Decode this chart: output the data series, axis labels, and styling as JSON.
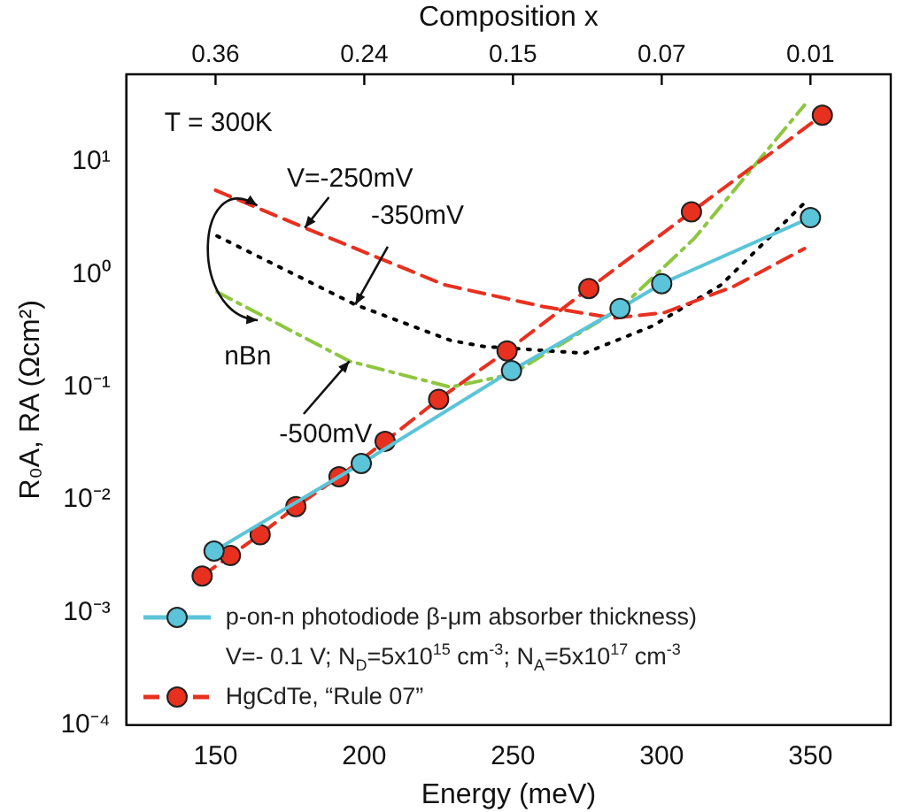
{
  "chart_data": {
    "type": "line",
    "xlabel": "Energy (meV)",
    "ylabel": "R₀A, RA (Ωcm²)",
    "xlim": [
      120,
      377
    ],
    "xticks": [
      150,
      200,
      250,
      300,
      350
    ],
    "log": "y",
    "ylim": [
      0.0001,
      60
    ],
    "yticks": [
      {
        "value": 0.0001,
        "label": "10⁻⁴"
      },
      {
        "value": 0.001,
        "label": "10⁻³"
      },
      {
        "value": 0.01,
        "label": "10⁻²"
      },
      {
        "value": 0.1,
        "label": "10⁻¹"
      },
      {
        "value": 1,
        "label": "10⁰"
      },
      {
        "value": 10,
        "label": "10¹"
      }
    ],
    "grid": false,
    "legend": "bottom left",
    "series": [
      {
        "name": "p-on-n photodiode β-μm  absorber thickness)",
        "color": "#5bc4d8",
        "marker": "circle",
        "line_style": "solid",
        "x": [
          149.5,
          199,
          249.5,
          286,
          300,
          350
        ],
        "values": [
          0.0035,
          0.021,
          0.14,
          0.5,
          0.83,
          3.2
        ]
      },
      {
        "name": "HgCdTe, “Rule 07”",
        "color": "#e8301f",
        "marker": "circle",
        "line_style": "dashed",
        "x": [
          145.5,
          155,
          165,
          177,
          191.5,
          207,
          225,
          248,
          275.5,
          310,
          354
        ],
        "values": [
          0.0021,
          0.0032,
          0.0049,
          0.0087,
          0.016,
          0.033,
          0.078,
          0.21,
          0.75,
          3.6,
          26
        ]
      },
      {
        "color": "#e8301f",
        "marker": "none",
        "line_style": "dashed",
        "x": [
          150,
          180,
          227,
          260,
          284,
          301,
          324,
          348
        ],
        "values": [
          5.6,
          2.6,
          0.81,
          0.52,
          0.41,
          0.46,
          0.78,
          1.7
        ]
      },
      {
        "color": "#000000",
        "marker": "none",
        "line_style": "dotted",
        "x": [
          150.5,
          197,
          229,
          240,
          274,
          297,
          320,
          347.5
        ],
        "values": [
          2.2,
          0.54,
          0.26,
          0.23,
          0.2,
          0.35,
          0.81,
          4.2
        ]
      },
      {
        "color": "#8dc63f",
        "marker": "none",
        "line_style": "dashdot",
        "x": [
          150.5,
          195,
          229,
          249.5,
          286,
          311,
          348
        ],
        "values": [
          0.7,
          0.17,
          0.1,
          0.13,
          0.5,
          2.1,
          32
        ]
      }
    ],
    "annotations": [
      "T = 300K",
      {
        "text": "V=-250mV",
        "x": 180,
        "y": 2.6
      },
      {
        "text": "-350mV",
        "x": 197,
        "y": 0.54
      },
      {
        "text": "-500mV",
        "x": 195,
        "y": 0.17
      },
      {
        "text": "nBn",
        "x": 164,
        "y": 4.1
      },
      "Composition x",
      {
        "text": "0.36",
        "x": 150
      },
      {
        "text": "0.24",
        "x": 200
      },
      {
        "text": "0.15",
        "x": 250
      },
      {
        "text": "0.07",
        "x": 300
      },
      {
        "text": "0.01",
        "x": 350
      },
      "V=- 0.1 V; N$_{D}$=5x10$^{15}$ cm$^{-3}$; N$_{A}$=5x10$^{17}$ cm$^{-3}$"
    ]
  }
}
